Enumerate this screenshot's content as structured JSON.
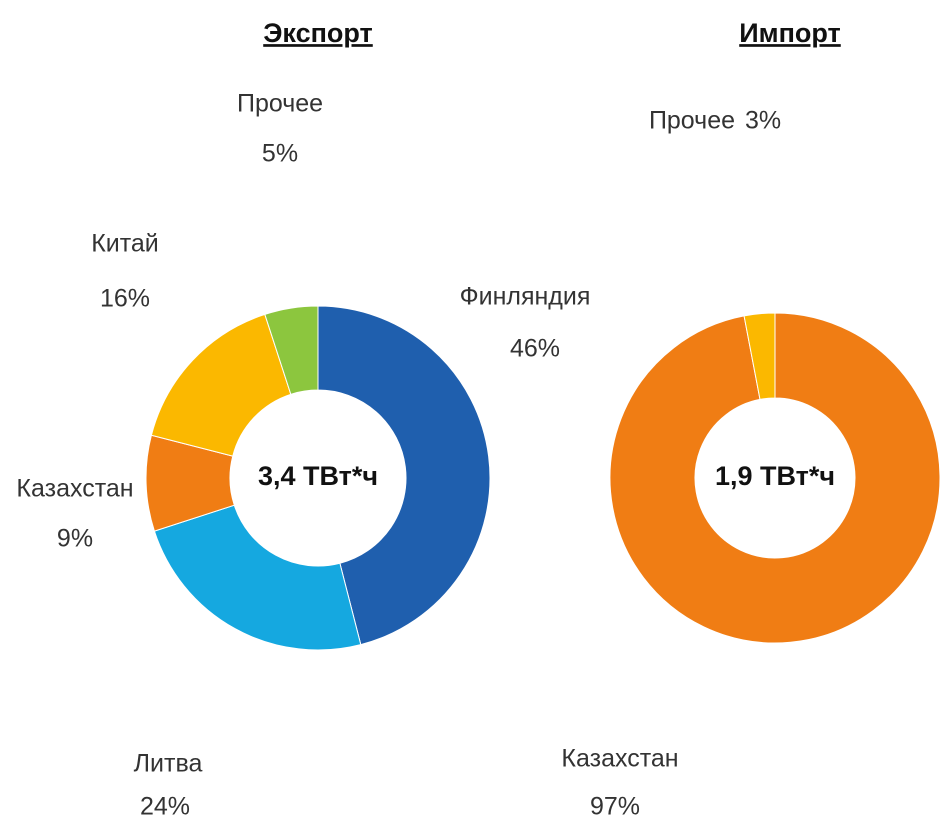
{
  "chart_data": [
    {
      "type": "pie",
      "title": "Экспорт",
      "center_label": "3,4 ТВт*ч",
      "categories": [
        "Финляндия",
        "Литва",
        "Казахстан",
        "Китай",
        "Прочее"
      ],
      "values": [
        46,
        24,
        9,
        16,
        5
      ],
      "value_labels": [
        "46%",
        "24%",
        "9%",
        "16%",
        "5%"
      ],
      "colors": [
        "#1f5fae",
        "#15a8e0",
        "#f07d14",
        "#fbb800",
        "#8cc63e"
      ]
    },
    {
      "type": "pie",
      "title": "Импорт",
      "center_label": "1,9 ТВт*ч",
      "categories": [
        "Казахстан",
        "Прочее"
      ],
      "values": [
        97,
        3
      ],
      "value_labels": [
        "97%",
        "3%"
      ],
      "colors": [
        "#f07d14",
        "#fbb800"
      ]
    }
  ]
}
